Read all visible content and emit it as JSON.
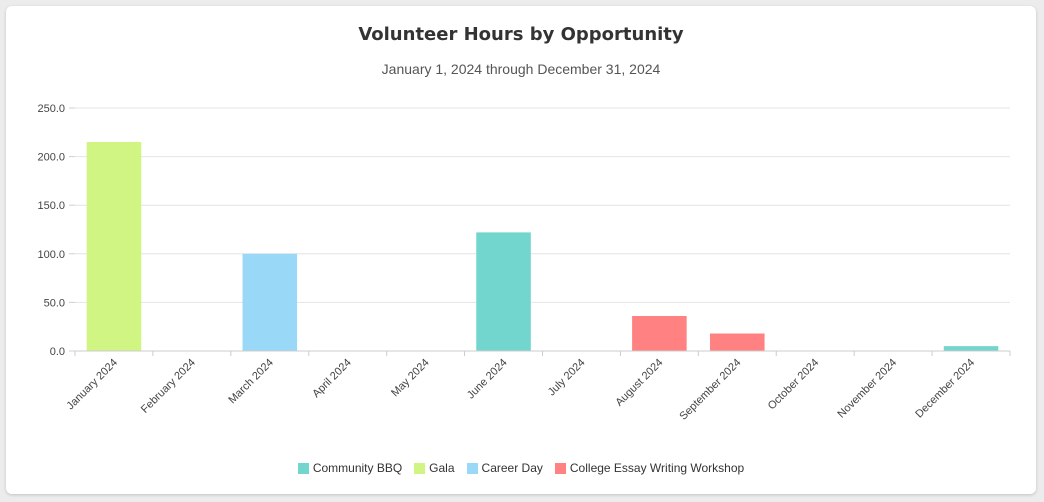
{
  "chart_data": {
    "type": "bar",
    "title": "Volunteer Hours by Opportunity",
    "subtitle": "January 1, 2024 through December 31, 2024",
    "xlabel": "",
    "ylabel": "",
    "ylim": [
      0,
      250
    ],
    "yticks": [
      "0.0",
      "50.0",
      "100.0",
      "150.0",
      "200.0",
      "250.0"
    ],
    "ytick_values": [
      0,
      50,
      100,
      150,
      200,
      250
    ],
    "grid": true,
    "legend_position": "bottom",
    "categories": [
      "January 2024",
      "February 2024",
      "March 2024",
      "April 2024",
      "May 2024",
      "June 2024",
      "July 2024",
      "August 2024",
      "September 2024",
      "October 2024",
      "November 2024",
      "December 2024"
    ],
    "series": [
      {
        "name": "Community BBQ",
        "color": "#72d5ce",
        "values": [
          0,
          0,
          0,
          0,
          0,
          122,
          0,
          0,
          0,
          0,
          0,
          5
        ]
      },
      {
        "name": "Gala",
        "color": "#d1f582",
        "values": [
          215,
          0,
          0,
          0,
          0,
          0,
          0,
          0,
          0,
          0,
          0,
          0
        ]
      },
      {
        "name": "Career Day",
        "color": "#99d9f7",
        "values": [
          0,
          0,
          100,
          0,
          0,
          0,
          0,
          0,
          0,
          0,
          0,
          0
        ]
      },
      {
        "name": "College Essay Writing Workshop",
        "color": "#ff8181",
        "values": [
          0,
          0,
          0,
          0,
          0,
          0,
          0,
          36,
          18,
          0,
          0,
          0
        ]
      }
    ]
  }
}
